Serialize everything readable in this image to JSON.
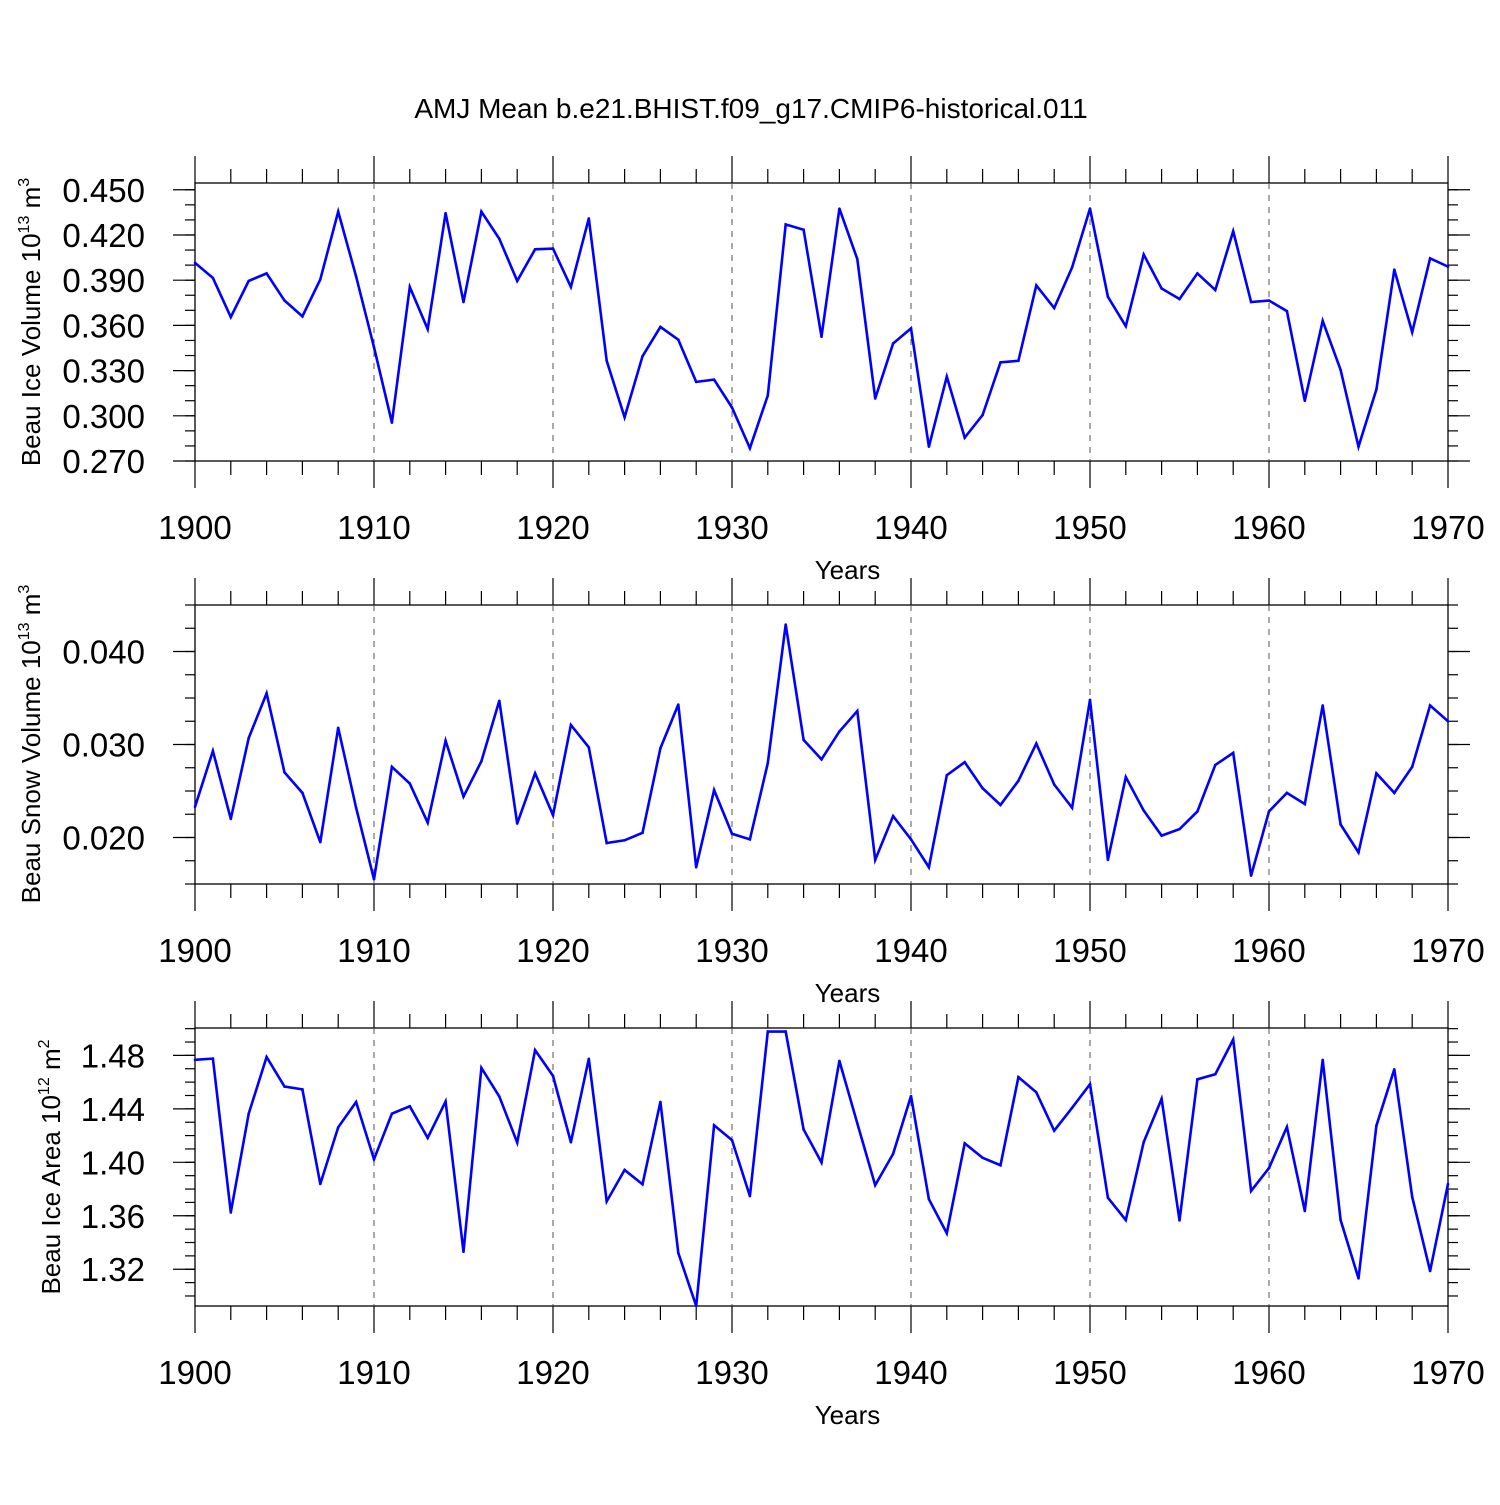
{
  "figure_title": "AMJ Mean b.e21.BHIST.f09_g17.CMIP6-historical.011",
  "series_color": "#0000ff",
  "chart_data": [
    {
      "type": "line",
      "id": "ice-volume",
      "ylabel_main": "Beau Ice Volume 10",
      "ylabel_exp": "13",
      "ylabel_unit": " m",
      "ylabel_unit_exp": "3",
      "xlabel": "Years",
      "xlim": [
        1900,
        1970
      ],
      "ylim": [
        0.27,
        0.4545
      ],
      "x_ticks": [
        "1900",
        "1910",
        "1920",
        "1930",
        "1940",
        "1950",
        "1960",
        "1970"
      ],
      "y_ticks": [
        "0.270",
        "0.300",
        "0.330",
        "0.360",
        "0.390",
        "0.420",
        "0.450"
      ],
      "grid": "vertical dashed at decades",
      "x_start": 1900,
      "values": [
        0.4015,
        0.3915,
        0.3655,
        0.3895,
        0.3945,
        0.3765,
        0.366,
        0.3905,
        0.4355,
        0.3925,
        0.3455,
        0.2955,
        0.3855,
        0.3575,
        0.4345,
        0.3755,
        0.4355,
        0.4175,
        0.3895,
        0.4105,
        0.411,
        0.3855,
        0.431,
        0.3365,
        0.299,
        0.3395,
        0.359,
        0.3505,
        0.3225,
        0.324,
        0.3055,
        0.2785,
        0.3135,
        0.427,
        0.4235,
        0.3525,
        0.4375,
        0.404,
        0.3115,
        0.348,
        0.358,
        0.2795,
        0.326,
        0.2855,
        0.3005,
        0.3355,
        0.3365,
        0.3865,
        0.3715,
        0.3985,
        0.4375,
        0.379,
        0.3595,
        0.407,
        0.3845,
        0.3775,
        0.3945,
        0.3835,
        0.4225,
        0.3755,
        0.3765,
        0.3695,
        0.31,
        0.363,
        0.3305,
        0.2795,
        0.3175,
        0.397,
        0.3555,
        0.4045,
        0.399
      ]
    },
    {
      "type": "line",
      "id": "snow-volume",
      "ylabel_main": "Beau Snow Volume 10",
      "ylabel_exp": "13",
      "ylabel_unit": " m",
      "ylabel_unit_exp": "3",
      "xlabel": "Years",
      "xlim": [
        1900,
        1970
      ],
      "ylim": [
        0.015,
        0.045
      ],
      "x_ticks": [
        "1900",
        "1910",
        "1920",
        "1930",
        "1940",
        "1950",
        "1960",
        "1970"
      ],
      "y_ticks": [
        "0.020",
        "0.030",
        "0.040"
      ],
      "grid": "vertical dashed at decades",
      "x_start": 1900,
      "values": [
        0.0233,
        0.0293,
        0.022,
        0.0307,
        0.0355,
        0.027,
        0.0248,
        0.0195,
        0.0318,
        0.0232,
        0.0155,
        0.0276,
        0.0258,
        0.0216,
        0.0304,
        0.0244,
        0.0282,
        0.0347,
        0.0215,
        0.0269,
        0.0224,
        0.0321,
        0.0297,
        0.0194,
        0.0197,
        0.0205,
        0.0296,
        0.0343,
        0.0168,
        0.0251,
        0.0204,
        0.0198,
        0.028,
        0.0429,
        0.0305,
        0.0284,
        0.0314,
        0.0336,
        0.0176,
        0.0223,
        0.0198,
        0.0168,
        0.0267,
        0.0281,
        0.0253,
        0.0235,
        0.0261,
        0.0301,
        0.0257,
        0.0232,
        0.0348,
        0.0176,
        0.0265,
        0.0229,
        0.0202,
        0.0209,
        0.0228,
        0.0278,
        0.0291,
        0.0159,
        0.0228,
        0.0248,
        0.0236,
        0.0342,
        0.0214,
        0.0184,
        0.0269,
        0.0248,
        0.0276,
        0.0342,
        0.0325
      ]
    },
    {
      "type": "line",
      "id": "ice-area",
      "ylabel_main": "Beau Ice Area 10",
      "ylabel_exp": "12",
      "ylabel_unit": " m",
      "ylabel_unit_exp": "2",
      "xlabel": "Years",
      "xlim": [
        1900,
        1970
      ],
      "ylim": [
        1.2925,
        1.5005
      ],
      "x_ticks": [
        "1900",
        "1910",
        "1920",
        "1930",
        "1940",
        "1950",
        "1960",
        "1970"
      ],
      "y_ticks": [
        "1.32",
        "1.36",
        "1.40",
        "1.44",
        "1.48"
      ],
      "grid": "vertical dashed at decades",
      "x_start": 1900,
      "values": [
        1.4767,
        1.4776,
        1.3625,
        1.4364,
        1.4788,
        1.4567,
        1.4546,
        1.3838,
        1.4262,
        1.4451,
        1.4023,
        1.4364,
        1.4419,
        1.4183,
        1.4455,
        1.3331,
        1.4706,
        1.4493,
        1.4148,
        1.4839,
        1.4647,
        1.415,
        1.4775,
        1.3708,
        1.3943,
        1.3836,
        1.4452,
        1.3322,
        1.2925,
        1.4277,
        1.4166,
        1.3747,
        1.4978,
        1.4978,
        1.4246,
        1.3999,
        1.4759,
        1.4292,
        1.3829,
        1.4063,
        1.4496,
        1.3724,
        1.3469,
        1.4142,
        1.4034,
        1.3978,
        1.4637,
        1.4524,
        1.4237,
        1.4408,
        1.4584,
        1.3735,
        1.3568,
        1.4151,
        1.4475,
        1.3566,
        1.4621,
        1.4659,
        1.4919,
        1.3786,
        1.3957,
        1.4264,
        1.3636,
        1.4766,
        1.3568,
        1.3132,
        1.4274,
        1.4696,
        1.3741,
        1.3187,
        1.3838
      ]
    }
  ]
}
